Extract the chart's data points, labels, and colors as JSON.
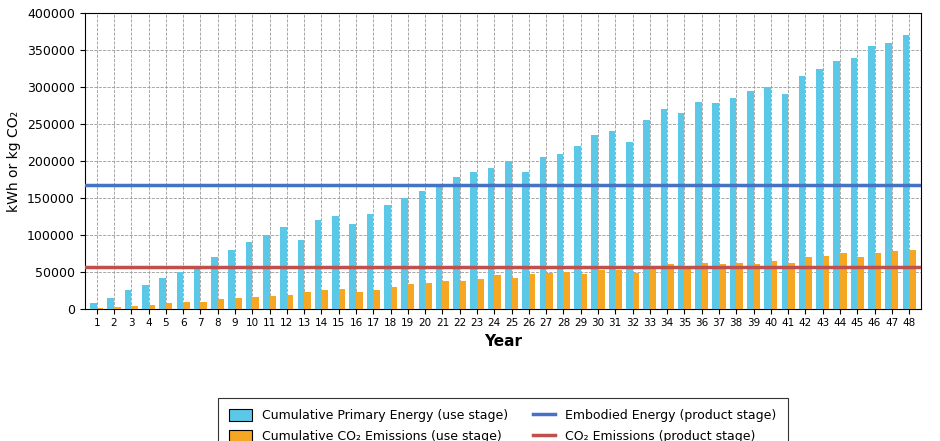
{
  "years": [
    1,
    2,
    3,
    4,
    5,
    6,
    7,
    8,
    9,
    10,
    11,
    12,
    13,
    14,
    15,
    16,
    17,
    18,
    19,
    20,
    21,
    22,
    23,
    24,
    25,
    26,
    27,
    28,
    29,
    30,
    31,
    32,
    33,
    34,
    35,
    36,
    37,
    38,
    39,
    40,
    41,
    42,
    43,
    44,
    45,
    46,
    47,
    48
  ],
  "cum_energy": [
    8000,
    15000,
    25000,
    32000,
    42000,
    50000,
    55000,
    70000,
    80000,
    90000,
    100000,
    110000,
    93000,
    120000,
    125000,
    115000,
    128000,
    140000,
    150000,
    160000,
    165000,
    178000,
    185000,
    190000,
    200000,
    185000,
    205000,
    210000,
    220000,
    235000,
    240000,
    225000,
    255000,
    270000,
    265000,
    280000,
    278000,
    285000,
    295000,
    300000,
    290000,
    315000,
    325000,
    335000,
    340000,
    355000,
    360000,
    370000
  ],
  "cum_co2": [
    1500,
    2000,
    4000,
    5000,
    8000,
    9000,
    9500,
    13000,
    15000,
    16000,
    17000,
    19000,
    22000,
    25000,
    27000,
    22000,
    25000,
    30000,
    33000,
    35000,
    37000,
    38000,
    40000,
    45000,
    42000,
    47000,
    48000,
    50000,
    47000,
    52000,
    52000,
    48000,
    57000,
    60000,
    58000,
    62000,
    60000,
    62000,
    60000,
    65000,
    62000,
    70000,
    72000,
    75000,
    70000,
    75000,
    78000,
    80000
  ],
  "embodied_energy": 168000,
  "co2_product": 57000,
  "bar_color_energy": "#5BC8E8",
  "bar_color_co2": "#F5A623",
  "line_color_energy": "#4472C4",
  "line_color_co2": "#C0504D",
  "ylabel": "kWh or kg CO₂",
  "xlabel": "Year",
  "ylim": [
    0,
    400000
  ],
  "yticks": [
    0,
    50000,
    100000,
    150000,
    200000,
    250000,
    300000,
    350000,
    400000
  ],
  "legend_labels": [
    "Cumulative Primary Energy (use stage)",
    "Cumulative CO₂ Emissions (use stage)",
    "Embodied Energy (product stage)",
    "CO₂ Emissions (product stage)"
  ],
  "background_color": "#FFFFFF",
  "grid_color": "#999999",
  "embodied_energy_linewidth": 2.5,
  "co2_linewidth": 2.5
}
